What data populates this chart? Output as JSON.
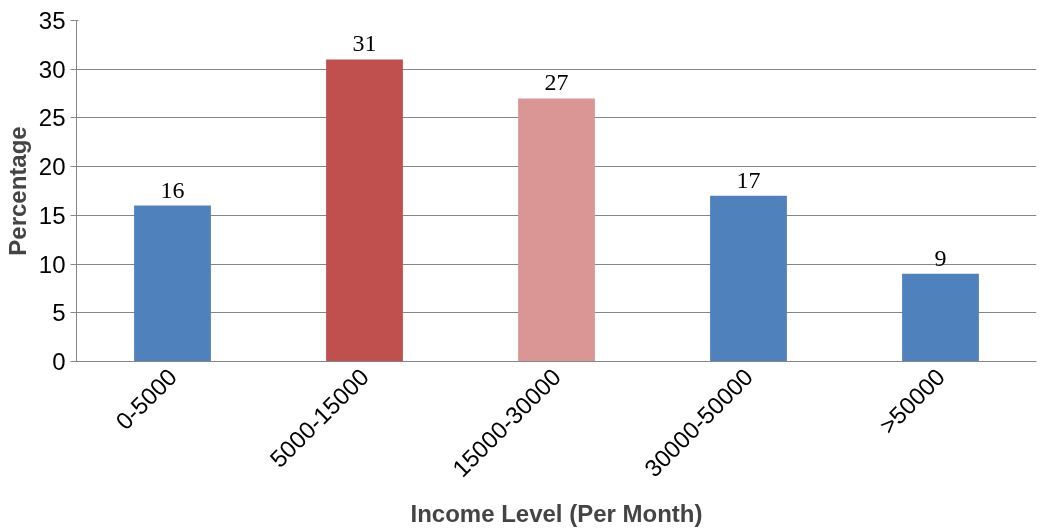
{
  "chart_data": {
    "type": "bar",
    "xlabel": "Income Level (Per Month)",
    "ylabel": "Percentage",
    "categories": [
      "0-5000",
      "5000-15000",
      "15000-30000",
      "30000-50000",
      ">50000"
    ],
    "values": [
      16,
      31,
      27,
      17,
      9
    ],
    "colors": [
      "#4f81bd",
      "#c0504d",
      "#d99694",
      "#4f81bd",
      "#4f81bd"
    ],
    "ylim": [
      0,
      35
    ],
    "yticks": [
      0,
      5,
      10,
      15,
      20,
      25,
      30,
      35
    ],
    "grid": "y",
    "data_labels": true
  }
}
